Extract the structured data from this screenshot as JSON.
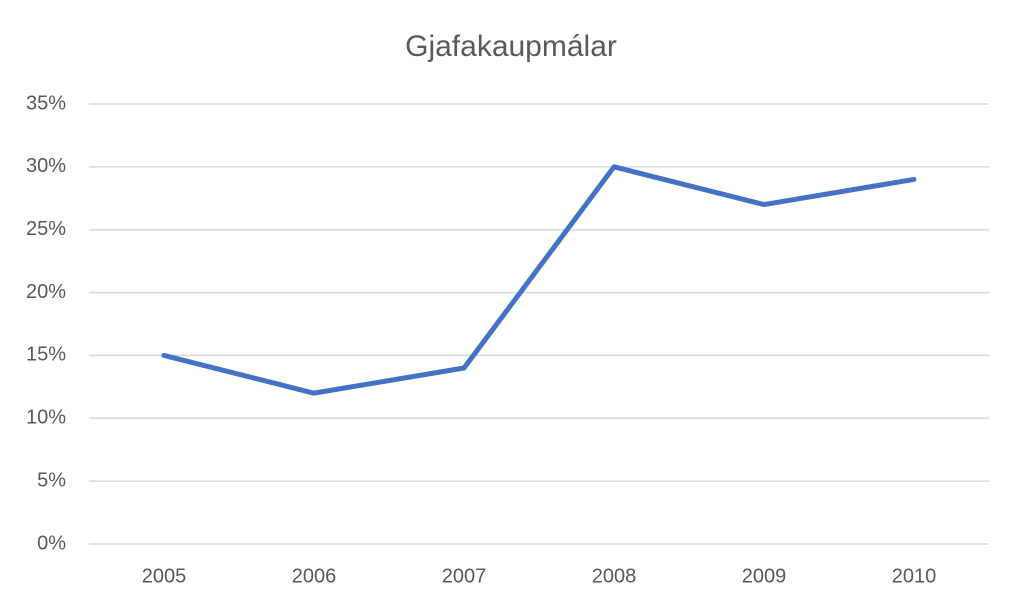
{
  "chart_data": {
    "type": "line",
    "title": "Gjafakaupmálar",
    "categories": [
      "2005",
      "2006",
      "2007",
      "2008",
      "2009",
      "2010"
    ],
    "values": [
      15,
      12,
      14,
      30,
      27,
      29
    ],
    "color": "#4472c4",
    "ylim": [
      0,
      35
    ],
    "yticks": [
      {
        "value": 0,
        "label": "0%"
      },
      {
        "value": 5,
        "label": "5%"
      },
      {
        "value": 10,
        "label": "10%"
      },
      {
        "value": 15,
        "label": "15%"
      },
      {
        "value": 20,
        "label": "20%"
      },
      {
        "value": 25,
        "label": "25%"
      },
      {
        "value": 30,
        "label": "30%"
      },
      {
        "value": 35,
        "label": "35%"
      }
    ],
    "grid": true
  }
}
